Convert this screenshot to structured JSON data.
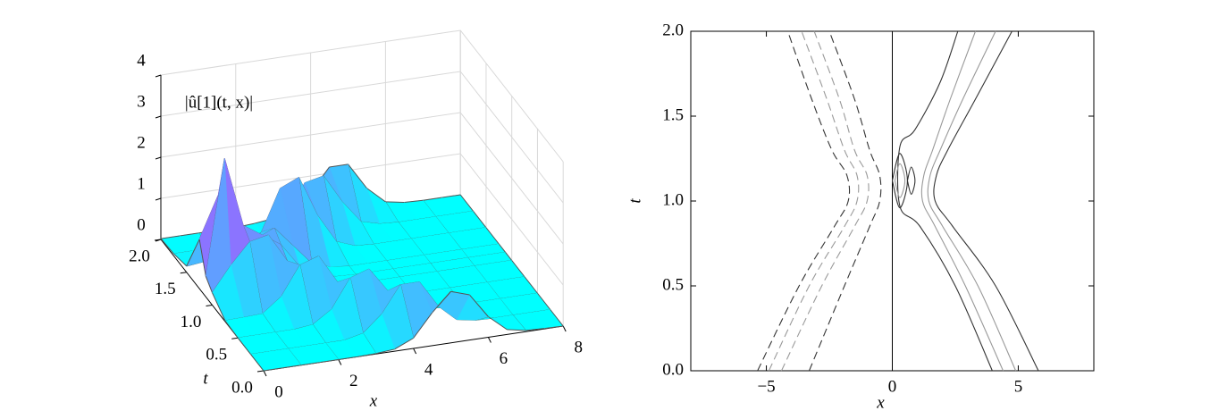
{
  "chart_data": [
    {
      "type": "surface",
      "zlabel": "|û[1](t, x)|",
      "xlabel": "x",
      "ylabel": "t",
      "x": [
        0,
        0.5,
        1,
        1.5,
        2,
        2.5,
        3,
        3.5,
        4,
        4.5,
        5,
        5.5,
        6,
        6.5,
        7,
        7.5,
        8
      ],
      "t": [
        0,
        0.25,
        0.5,
        0.75,
        1,
        1.125,
        1.25,
        1.5,
        1.75,
        2
      ],
      "z": [
        [
          0,
          0,
          0,
          0,
          0,
          0,
          0.01,
          0.05,
          0.25,
          0.8,
          1.25,
          1.1,
          0.5,
          0.12,
          0.03,
          0.01,
          0
        ],
        [
          0,
          0,
          0,
          0,
          0,
          0,
          0.1,
          0.5,
          1.15,
          1.15,
          0.5,
          0.1,
          0.02,
          0,
          0,
          0,
          0
        ],
        [
          0,
          0,
          0,
          0,
          0.05,
          0.35,
          1.05,
          1.2,
          0.6,
          0.15,
          0.03,
          0,
          0,
          0,
          0,
          0,
          0
        ],
        [
          0.02,
          0.03,
          0.05,
          0.4,
          1.1,
          1.25,
          0.55,
          0.12,
          0.02,
          0,
          0,
          0,
          0,
          0,
          0,
          0,
          0
        ],
        [
          0.3,
          0.9,
          1.4,
          1.5,
          0.8,
          0.2,
          0.05,
          0.01,
          0,
          0,
          0,
          0,
          0,
          0,
          0,
          0,
          0
        ],
        [
          0.5,
          3.3,
          1.6,
          1.3,
          1.0,
          0.4,
          0.1,
          0.02,
          0,
          0,
          0,
          0,
          0,
          0,
          0,
          0,
          0
        ],
        [
          1.2,
          2.2,
          1.1,
          1.0,
          1.2,
          0.7,
          0.2,
          0.05,
          0,
          0,
          0,
          0,
          0,
          0,
          0,
          0,
          0
        ],
        [
          0.15,
          0.2,
          0.1,
          0.2,
          0.7,
          1.7,
          1.9,
          0.9,
          0.2,
          0.03,
          0,
          0,
          0,
          0,
          0,
          0,
          0
        ],
        [
          0.05,
          0.05,
          0.03,
          0.05,
          0.1,
          0.1,
          0.5,
          1.3,
          1.4,
          0.7,
          0.15,
          0.03,
          0,
          0,
          0,
          0,
          0
        ],
        [
          0.02,
          0.02,
          0.02,
          0.02,
          0.02,
          0.05,
          0.1,
          0.15,
          0.6,
          1.15,
          1.15,
          0.5,
          0.1,
          0.02,
          0,
          0,
          0
        ]
      ],
      "xlim": [
        0,
        8
      ],
      "ylim": [
        0,
        2
      ],
      "zlim": [
        0,
        4
      ],
      "xticks": [
        0,
        2,
        4,
        6,
        8
      ],
      "yticks": [
        {
          "value": 0,
          "label": "0.0"
        },
        {
          "value": 0.5,
          "label": "0.5"
        },
        {
          "value": 1,
          "label": "1.0"
        },
        {
          "value": 1.5,
          "label": "1.5"
        },
        {
          "value": 2,
          "label": "2.0"
        }
      ],
      "zticks": [
        0,
        1,
        2,
        3,
        4
      ],
      "colormap": [
        "#00ffff",
        "#ff00ff"
      ],
      "grid": true
    },
    {
      "type": "contour",
      "xlabel": "x",
      "ylabel": "t",
      "xlim": [
        -8,
        8
      ],
      "ylim": [
        0,
        2
      ],
      "xticks": [
        {
          "value": -5,
          "label": "−5"
        },
        0,
        5
      ],
      "yticks": [
        {
          "value": 0,
          "label": "0.0"
        },
        {
          "value": 0.5,
          "label": "0.5"
        },
        {
          "value": 1,
          "label": "1.0"
        },
        {
          "value": 1.5,
          "label": "1.5"
        },
        {
          "value": 2,
          "label": "2.0"
        }
      ],
      "vlines": [
        0
      ],
      "lines": [
        {
          "color": "#333333",
          "dash": false,
          "x": [
            5.8,
            4.1,
            2.4,
            1.7,
            1.75,
            2.2,
            3.3,
            4.75
          ],
          "t": [
            0,
            0.5,
            0.85,
            1.0,
            1.15,
            1.3,
            1.6,
            2
          ]
        },
        {
          "color": "#999999",
          "dash": false,
          "x": [
            4.9,
            3.4,
            2.0,
            1.45,
            1.5,
            1.9,
            2.8,
            4.1
          ],
          "t": [
            0,
            0.5,
            0.85,
            1.0,
            1.15,
            1.3,
            1.6,
            2
          ]
        },
        {
          "color": "#999999",
          "dash": false,
          "x": [
            4.4,
            2.9,
            1.7,
            1.2,
            1.25,
            1.6,
            2.3,
            3.3
          ],
          "t": [
            0,
            0.5,
            0.85,
            1.0,
            1.15,
            1.3,
            1.6,
            2
          ]
        },
        {
          "color": "#333333",
          "dash": false,
          "x": [
            3.97,
            2.5,
            1.1,
            0.3,
            0.3,
            0.9,
            1.9,
            2.6
          ],
          "t": [
            0,
            0.5,
            0.85,
            0.97,
            1.32,
            1.42,
            1.7,
            2
          ]
        },
        {
          "color": "#333333",
          "dash": true,
          "x": [
            -5.35,
            -3.7,
            -2.3,
            -1.75,
            -1.8,
            -2.4,
            -3.2,
            -4.15
          ],
          "t": [
            0,
            0.5,
            0.85,
            1.0,
            1.15,
            1.3,
            1.6,
            2
          ]
        },
        {
          "color": "#999999",
          "dash": true,
          "x": [
            -4.9,
            -3.3,
            -1.9,
            -1.4,
            -1.4,
            -1.9,
            -2.6,
            -3.6
          ],
          "t": [
            0,
            0.5,
            0.85,
            1.0,
            1.15,
            1.3,
            1.6,
            2
          ]
        },
        {
          "color": "#999999",
          "dash": true,
          "x": [
            -4.4,
            -2.8,
            -1.5,
            -1.0,
            -1.0,
            -1.5,
            -2.1,
            -3.1
          ],
          "t": [
            0,
            0.5,
            0.85,
            1.0,
            1.15,
            1.3,
            1.6,
            2
          ]
        },
        {
          "color": "#333333",
          "dash": true,
          "x": [
            -3.3,
            -1.9,
            -0.9,
            -0.5,
            -0.5,
            -0.9,
            -1.5,
            -2.5
          ],
          "t": [
            0,
            0.5,
            0.85,
            1.0,
            1.15,
            1.3,
            1.6,
            2
          ]
        },
        {
          "color": "#333333",
          "dash": false,
          "x": [
            0.0,
            0.3,
            0.6,
            0.3,
            0.0
          ],
          "t": [
            1.12,
            1.28,
            1.12,
            0.96,
            1.12
          ]
        },
        {
          "color": "#999999",
          "dash": false,
          "x": [
            0.1,
            0.3,
            0.5,
            0.3,
            0.1
          ],
          "t": [
            1.12,
            1.22,
            1.12,
            1.02,
            1.12
          ]
        },
        {
          "color": "#333333",
          "dash": false,
          "x": [
            0.6,
            0.75,
            0.9,
            0.75,
            0.6
          ],
          "t": [
            1.12,
            1.2,
            1.12,
            1.04,
            1.12
          ]
        }
      ]
    }
  ]
}
